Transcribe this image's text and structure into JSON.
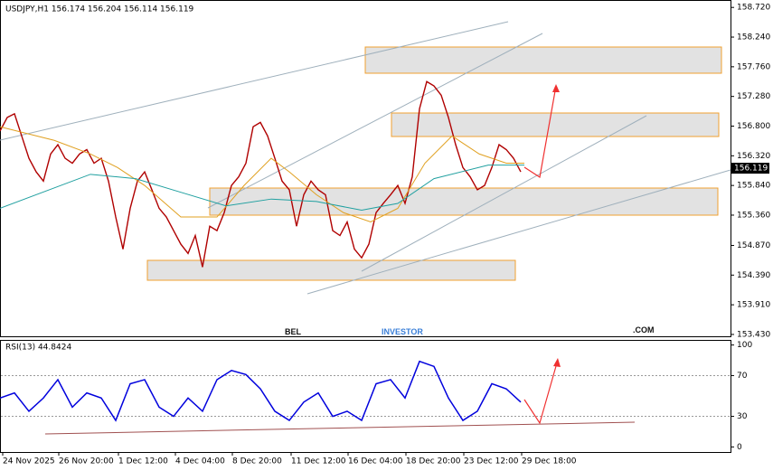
{
  "chart_data": {
    "type": "line",
    "title": "USDJPY,H1  156.174 156.204 156.114 156.119",
    "last_price": {
      "value": 156.119,
      "label": "156.119"
    },
    "xlim": [
      0,
      808
    ],
    "xticks": [
      {
        "value": 3,
        "label": "24 Nov 2025"
      },
      {
        "value": 65,
        "label": "26 Nov 20:00"
      },
      {
        "value": 131,
        "label": "1 Dec 12:00"
      },
      {
        "value": 194,
        "label": "4 Dec 04:00"
      },
      {
        "value": 257,
        "label": "8 Dec 20:00"
      },
      {
        "value": 322,
        "label": "11 Dec 12:00"
      },
      {
        "value": 385,
        "label": "16 Dec 04:00"
      },
      {
        "value": 449,
        "label": "18 Dec 20:00"
      },
      {
        "value": 513,
        "label": "23 Dec 12:00"
      },
      {
        "value": 577,
        "label": "29 Dec 18:00"
      }
    ],
    "ylim": [
      153.4,
      158.84
    ],
    "yticks": [
      {
        "value": 158.72,
        "label": "158.720"
      },
      {
        "value": 158.24,
        "label": "158.240"
      },
      {
        "value": 157.76,
        "label": "157.760"
      },
      {
        "value": 157.28,
        "label": "157.280"
      },
      {
        "value": 156.8,
        "label": "156.800"
      },
      {
        "value": 156.32,
        "label": "156.320"
      },
      {
        "value": 155.84,
        "label": "155.840"
      },
      {
        "value": 155.36,
        "label": "155.360"
      },
      {
        "value": 154.87,
        "label": "154.870"
      },
      {
        "value": 154.39,
        "label": "154.390"
      },
      {
        "value": 153.91,
        "label": "153.910"
      },
      {
        "value": 153.43,
        "label": "153.430"
      }
    ],
    "series": [
      {
        "color": "#b00000",
        "x": [
          0,
          8,
          16,
          24,
          32,
          40,
          48,
          56,
          64,
          72,
          80,
          88,
          96,
          104,
          112,
          120,
          128,
          136,
          144,
          152,
          160,
          168,
          176,
          184,
          192,
          200,
          208,
          216,
          224,
          232,
          240,
          248,
          256,
          264,
          272,
          280,
          288,
          296,
          304,
          312,
          320,
          328,
          336,
          344,
          352,
          360,
          368,
          376,
          384,
          392,
          400,
          408,
          416,
          424,
          432,
          440,
          448,
          456,
          464,
          472,
          480,
          488,
          496,
          504,
          512,
          520,
          528,
          536,
          544,
          552,
          560,
          568,
          576
        ],
        "values": [
          156.72,
          156.94,
          157.0,
          156.64,
          156.28,
          156.06,
          155.91,
          156.35,
          156.5,
          156.28,
          156.2,
          156.35,
          156.42,
          156.2,
          156.28,
          155.91,
          155.33,
          154.81,
          155.47,
          155.91,
          156.06,
          155.77,
          155.47,
          155.33,
          155.11,
          154.89,
          154.74,
          155.03,
          154.52,
          155.18,
          155.11,
          155.4,
          155.84,
          155.98,
          156.2,
          156.79,
          156.86,
          156.64,
          156.28,
          155.91,
          155.77,
          155.18,
          155.69,
          155.91,
          155.77,
          155.69,
          155.11,
          155.03,
          155.25,
          154.81,
          154.67,
          154.89,
          155.4,
          155.55,
          155.69,
          155.84,
          155.55,
          155.98,
          157.08,
          157.52,
          157.45,
          157.3,
          156.94,
          156.5,
          156.13,
          155.98,
          155.77,
          155.84,
          156.13,
          156.5,
          156.42,
          156.28,
          156.06
        ]
      },
      {
        "color": "#e0a020",
        "x": [
          0,
          60,
          100,
          130,
          160,
          200,
          240,
          270,
          300,
          320,
          350,
          380,
          410,
          440,
          470,
          500,
          530,
          560,
          580
        ],
        "values": [
          156.79,
          156.57,
          156.35,
          156.13,
          155.84,
          155.33,
          155.33,
          155.84,
          156.28,
          156.06,
          155.69,
          155.4,
          155.25,
          155.47,
          156.2,
          156.64,
          156.35,
          156.2,
          156.2
        ]
      },
      {
        "color": "#20a0a0",
        "x": [
          0,
          100,
          150,
          200,
          250,
          300,
          350,
          400,
          440,
          480,
          540,
          580
        ],
        "values": [
          155.47,
          156.02,
          155.95,
          155.73,
          155.51,
          155.62,
          155.58,
          155.44,
          155.55,
          155.95,
          156.17,
          156.17
        ]
      }
    ],
    "rsi": {
      "title": "RSI(13) 44.8424",
      "color": "#0000dd",
      "ylim": [
        -5,
        105
      ],
      "yticks": [
        100,
        70,
        30,
        0
      ],
      "x": [
        0,
        16,
        32,
        48,
        64,
        80,
        96,
        112,
        128,
        144,
        160,
        176,
        192,
        208,
        224,
        240,
        256,
        272,
        288,
        304,
        320,
        336,
        352,
        368,
        384,
        400,
        416,
        432,
        448,
        464,
        480,
        496,
        512,
        528,
        544,
        560,
        576
      ],
      "values": [
        48,
        53,
        35,
        48,
        66,
        39,
        53,
        48,
        26,
        62,
        66,
        39,
        30,
        48,
        35,
        66,
        75,
        71,
        57,
        35,
        26,
        44,
        53,
        30,
        35,
        26,
        62,
        66,
        48,
        84,
        79,
        48,
        26,
        35,
        62,
        57,
        44
      ]
    },
    "watermark": {
      "a": "BEL",
      "b": "INVESTOR",
      "c": ".COM"
    }
  }
}
